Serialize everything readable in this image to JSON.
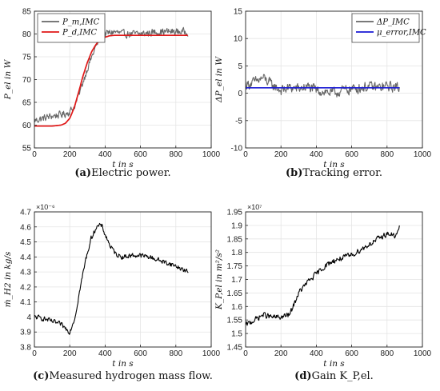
{
  "chart_data": [
    {
      "id": "power",
      "type": "line",
      "caption_letter": "(a)",
      "caption_text": "Electric power.",
      "xlabel": "t in s",
      "ylabel": "P_el in W",
      "xlim": [
        0,
        1000
      ],
      "ylim": [
        55,
        85
      ],
      "xticks": [
        0,
        200,
        400,
        600,
        800,
        1000
      ],
      "yticks": [
        55,
        60,
        65,
        70,
        75,
        80,
        85
      ],
      "legend_position": "top-left",
      "series": [
        {
          "name": "P_m,IMC",
          "color": "#666666",
          "noisy": true,
          "x": [
            0,
            50,
            100,
            150,
            175,
            200,
            225,
            250,
            275,
            300,
            325,
            350,
            375,
            400,
            450,
            500,
            600,
            700,
            800,
            870
          ],
          "values": [
            61.0,
            61.5,
            62.0,
            62.3,
            62.5,
            63.0,
            64.0,
            66.5,
            69.5,
            72.5,
            75.0,
            77.5,
            79.0,
            80.0,
            80.5,
            80.0,
            80.0,
            80.5,
            80.5,
            80.5
          ],
          "noise": 1.1
        },
        {
          "name": "P_d,IMC",
          "color": "#e01818",
          "noisy": false,
          "x": [
            0,
            100,
            150,
            175,
            200,
            225,
            250,
            275,
            300,
            325,
            350,
            375,
            400,
            425,
            450,
            500,
            600,
            700,
            800,
            870
          ],
          "values": [
            59.8,
            59.8,
            60.0,
            60.4,
            61.5,
            63.8,
            67.2,
            70.8,
            73.8,
            76.2,
            77.8,
            78.8,
            79.3,
            79.6,
            79.7,
            79.7,
            79.7,
            79.7,
            79.7,
            79.7
          ]
        }
      ]
    },
    {
      "id": "error",
      "type": "line",
      "caption_letter": "(b)",
      "caption_text": "Tracking error.",
      "xlabel": "t in s",
      "ylabel": "ΔP_el in W",
      "xlim": [
        0,
        1000
      ],
      "ylim": [
        -10,
        15
      ],
      "xticks": [
        0,
        200,
        400,
        600,
        800,
        1000
      ],
      "yticks": [
        -10,
        -5,
        0,
        5,
        10,
        15
      ],
      "legend_position": "top-right",
      "series": [
        {
          "name": "ΔP_IMC",
          "color": "#666666",
          "noisy": true,
          "x": [
            0,
            50,
            100,
            150,
            200,
            250,
            300,
            350,
            400,
            450,
            500,
            550,
            600,
            650,
            700,
            750,
            800,
            870
          ],
          "values": [
            1.5,
            2.0,
            2.8,
            1.5,
            0.5,
            1.0,
            0.8,
            1.2,
            0.5,
            0.3,
            0.0,
            0.5,
            0.8,
            1.0,
            1.2,
            1.0,
            1.3,
            1.0
          ],
          "noise": 1.3
        },
        {
          "name": "μ_error,IMC",
          "color": "#1a1ad4",
          "noisy": false,
          "x": [
            0,
            870
          ],
          "values": [
            1.0,
            1.0
          ]
        }
      ]
    },
    {
      "id": "hydrogen",
      "type": "line",
      "caption_letter": "(c)",
      "caption_text": "Measured hydrogen mass flow.",
      "xlabel": "t in s",
      "ylabel": "ṁ_H2 in kg/s",
      "exponent": "×10⁻⁶",
      "xlim": [
        0,
        1000
      ],
      "ylim": [
        3.8,
        4.7
      ],
      "xticks": [
        0,
        200,
        400,
        600,
        800,
        1000
      ],
      "yticks": [
        3.8,
        3.9,
        4.0,
        4.1,
        4.2,
        4.3,
        4.4,
        4.5,
        4.6,
        4.7
      ],
      "series": [
        {
          "name": "",
          "color": "#000000",
          "noisy": true,
          "x": [
            0,
            50,
            100,
            150,
            200,
            230,
            260,
            290,
            320,
            350,
            380,
            400,
            430,
            460,
            500,
            550,
            600,
            650,
            700,
            750,
            800,
            850,
            870
          ],
          "values": [
            4.0,
            3.99,
            3.97,
            3.95,
            3.9,
            4.0,
            4.2,
            4.38,
            4.52,
            4.6,
            4.61,
            4.55,
            4.47,
            4.42,
            4.4,
            4.41,
            4.41,
            4.4,
            4.38,
            4.36,
            4.34,
            4.31,
            4.3
          ],
          "noise": 0.022
        }
      ]
    },
    {
      "id": "gain",
      "type": "line",
      "caption_letter": "(d)",
      "caption_text": "Gain K_P,el.",
      "xlabel": "t in s",
      "ylabel": "K_P,el in m²/s²",
      "exponent": "×10⁷",
      "xlim": [
        0,
        1000
      ],
      "ylim": [
        1.45,
        1.95
      ],
      "xticks": [
        0,
        200,
        400,
        600,
        800,
        1000
      ],
      "yticks": [
        1.45,
        1.5,
        1.55,
        1.6,
        1.65,
        1.7,
        1.75,
        1.8,
        1.85,
        1.9,
        1.95
      ],
      "series": [
        {
          "name": "",
          "color": "#000000",
          "noisy": true,
          "x": [
            0,
            50,
            100,
            150,
            200,
            250,
            275,
            300,
            350,
            400,
            450,
            500,
            550,
            600,
            650,
            700,
            750,
            800,
            850,
            870
          ],
          "values": [
            1.53,
            1.55,
            1.57,
            1.56,
            1.56,
            1.57,
            1.61,
            1.65,
            1.69,
            1.72,
            1.75,
            1.77,
            1.78,
            1.79,
            1.81,
            1.83,
            1.85,
            1.87,
            1.86,
            1.89
          ],
          "noise": 0.014
        }
      ]
    }
  ]
}
